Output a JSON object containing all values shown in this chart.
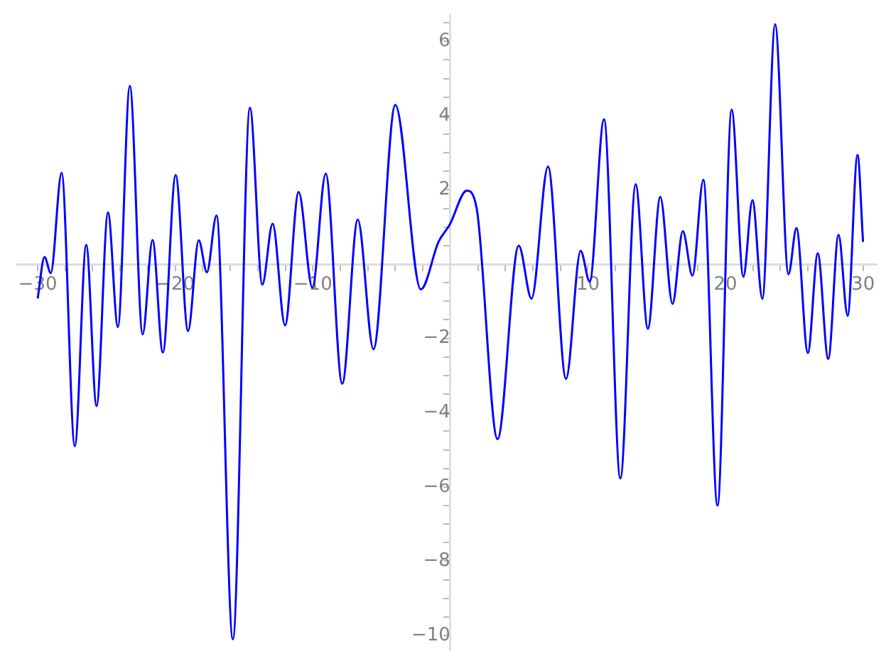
{
  "chart_data": {
    "type": "line",
    "x": [
      -30,
      -29.5,
      -29.05,
      -28.26,
      -27.3,
      -26.47,
      -25.72,
      -24.89,
      -24.17,
      -23.3,
      -22.37,
      -21.65,
      -20.9,
      -19.97,
      -19.07,
      -18.29,
      -17.7,
      -17.0,
      -15.81,
      -14.57,
      -13.67,
      -12.92,
      -12.02,
      -11.03,
      -10.03,
      -9.06,
      -7.86,
      -6.73,
      -5.59,
      -4.0,
      -2.15,
      -0.85,
      -0.05,
      1.19,
      1.91,
      3.43,
      4.97,
      5.9,
      7.1,
      8.41,
      9.47,
      10.13,
      11.17,
      12.36,
      13.47,
      14.36,
      15.26,
      16.15,
      16.9,
      17.6,
      18.39,
      19.42,
      20.45,
      21.3,
      21.96,
      22.68,
      23.61,
      24.58,
      25.16,
      25.99,
      26.71,
      27.47,
      28.22,
      28.88,
      29.6,
      30
    ],
    "series": [
      {
        "color": "#0000ff",
        "values": [
          -0.92,
          0.19,
          -0.24,
          2.46,
          -4.9,
          0.52,
          -3.82,
          1.39,
          -1.69,
          4.8,
          -1.89,
          0.65,
          -2.38,
          2.4,
          -1.8,
          0.64,
          -0.22,
          1.31,
          -10.1,
          4.21,
          -0.55,
          1.09,
          -1.65,
          1.94,
          -0.63,
          2.44,
          -3.22,
          1.2,
          -2.29,
          4.29,
          -0.68,
          0.61,
          1.06,
          1.98,
          1.51,
          -4.71,
          0.5,
          -0.93,
          2.63,
          -3.09,
          0.36,
          -0.47,
          3.9,
          -5.77,
          2.15,
          -1.74,
          1.81,
          -1.07,
          0.89,
          -0.31,
          2.27,
          -6.5,
          4.16,
          -0.34,
          1.72,
          -0.93,
          6.46,
          -0.27,
          0.97,
          -2.39,
          0.29,
          -2.55,
          0.79,
          -1.39,
          2.94,
          0.6
        ]
      }
    ],
    "xlim": [
      -31.5,
      31
    ],
    "ylim": [
      -10.4,
      6.7
    ],
    "xticks": [
      {
        "value": -30,
        "label": "−30"
      },
      {
        "value": -28,
        "label": null
      },
      {
        "value": -26,
        "label": null
      },
      {
        "value": -24,
        "label": null
      },
      {
        "value": -22,
        "label": null
      },
      {
        "value": -20,
        "label": "−20"
      },
      {
        "value": -18,
        "label": null
      },
      {
        "value": -16,
        "label": null
      },
      {
        "value": -14,
        "label": null
      },
      {
        "value": -12,
        "label": null
      },
      {
        "value": -10,
        "label": "−10"
      },
      {
        "value": -8,
        "label": null
      },
      {
        "value": -6,
        "label": null
      },
      {
        "value": -4,
        "label": null
      },
      {
        "value": -2,
        "label": null
      },
      {
        "value": 2,
        "label": null
      },
      {
        "value": 4,
        "label": null
      },
      {
        "value": 6,
        "label": null
      },
      {
        "value": 8,
        "label": null
      },
      10,
      {
        "value": 12,
        "label": null
      },
      {
        "value": 14,
        "label": null
      },
      {
        "value": 16,
        "label": null
      },
      {
        "value": 18,
        "label": null
      },
      20,
      {
        "value": 22,
        "label": null
      },
      {
        "value": 24,
        "label": null
      },
      {
        "value": 26,
        "label": null
      },
      {
        "value": 28,
        "label": null
      },
      30
    ],
    "yticks": [
      {
        "value": -10,
        "label": "−10"
      },
      {
        "value": -9.5,
        "label": null
      },
      {
        "value": -9,
        "label": null
      },
      {
        "value": -8.5,
        "label": null
      },
      {
        "value": -8,
        "label": "−8"
      },
      {
        "value": -7.5,
        "label": null
      },
      {
        "value": -7,
        "label": null
      },
      {
        "value": -6.5,
        "label": null
      },
      {
        "value": -6,
        "label": "−6"
      },
      {
        "value": -5.5,
        "label": null
      },
      {
        "value": -5,
        "label": null
      },
      {
        "value": -4.5,
        "label": null
      },
      {
        "value": -4,
        "label": "−4"
      },
      {
        "value": -3.5,
        "label": null
      },
      {
        "value": -3,
        "label": null
      },
      {
        "value": -2.5,
        "label": null
      },
      {
        "value": -2,
        "label": "−2"
      },
      {
        "value": -1.5,
        "label": null
      },
      {
        "value": -1,
        "label": null
      },
      {
        "value": -0.5,
        "label": null
      },
      {
        "value": 0.5,
        "label": null
      },
      {
        "value": 1,
        "label": null
      },
      {
        "value": 1.5,
        "label": null
      },
      2,
      {
        "value": 2.5,
        "label": null
      },
      {
        "value": 3,
        "label": null
      },
      {
        "value": 3.5,
        "label": null
      },
      4,
      {
        "value": 4.5,
        "label": null
      },
      {
        "value": 5,
        "label": null
      },
      {
        "value": 5.5,
        "label": null
      },
      6,
      {
        "value": 6.5,
        "label": null
      }
    ]
  }
}
